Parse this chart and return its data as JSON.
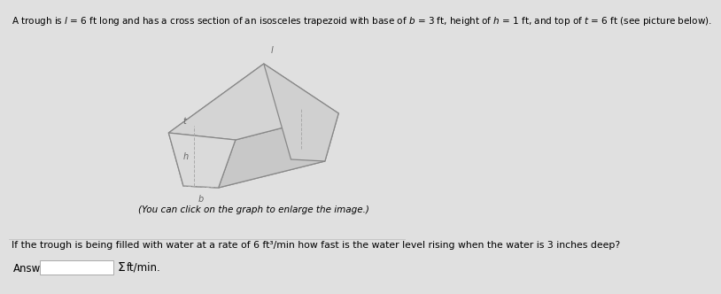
{
  "background_color": "#e0e0e0",
  "title_text": "A trough is $l$ = 6 ft long and has a cross section of an isosceles trapezoid with base of $b$ = 3 ft, height of $h$ = 1 ft, and top of $t$ = 6 ft (see picture below).",
  "caption_text": "(You can click on the graph to enlarge the image.)",
  "question_text": "If the trough is being filled with water at a rate of 6 ft³/min how fast is the water level rising when the water is 3 inches deep?",
  "answer_label": "Answer:",
  "sigma_label": "Σ",
  "units_label": "ft/min.",
  "title_fontsize": 7.5,
  "caption_fontsize": 7.5,
  "question_fontsize": 7.8,
  "answer_fontsize": 8.5,
  "line_color": "#888888",
  "dashed_color": "#aaaaaa",
  "label_color": "#666666",
  "lw": 0.9,
  "dlw": 0.7
}
